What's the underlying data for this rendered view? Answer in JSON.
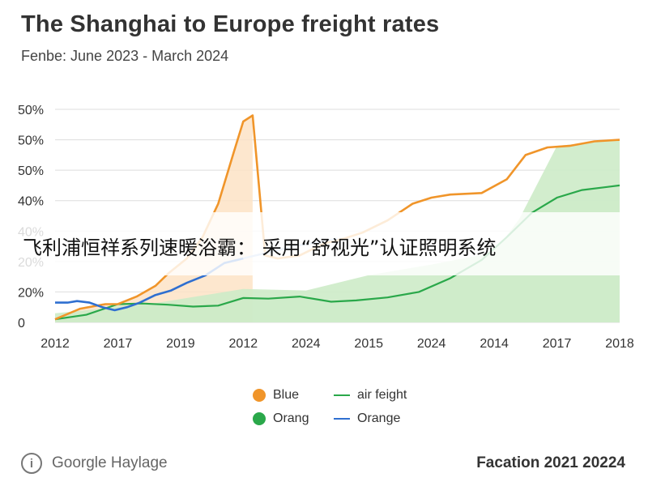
{
  "header": {
    "title": "The Shanghai to Europe freight rates",
    "subtitle": "Fenbe: June 2023 - March 2024"
  },
  "overlay": {
    "banner_text": "飞利浦恒祥系列速暖浴霸： 采用“舒视光”认证照明系统"
  },
  "footer": {
    "source_label": "Goorgle Haylage",
    "source_icon": "info-icon",
    "right_text": "Facation 2021 20224"
  },
  "colors": {
    "orange": "#f0952a",
    "orange_fill": "#fde3c6",
    "green": "#2aa84a",
    "green_fill": "#cdebc8",
    "blue": "#2f6fd0",
    "blue_light": "#a9c9ee",
    "grid": "#dddddd"
  },
  "chart_data": {
    "type": "line",
    "y_tick_labels": [
      "0",
      "20%",
      "20%",
      "40%",
      "40%",
      "50%",
      "50%",
      "50%"
    ],
    "x_tick_labels": [
      "2012",
      "2017",
      "2019",
      "2012",
      "2024",
      "2015",
      "2024",
      "2014",
      "2017",
      "2018"
    ],
    "grid": true,
    "legend_position": "bottom",
    "legend": [
      {
        "label": "Blue",
        "marker": "dot",
        "color": "#f0952a"
      },
      {
        "label": "air feight",
        "marker": "line",
        "color": "#2aa84a"
      },
      {
        "label": "Orang",
        "marker": "dot",
        "color": "#2aa84a"
      },
      {
        "label": "Orange",
        "marker": "line",
        "color": "#2f6fd0"
      }
    ],
    "x_domain": [
      0,
      9
    ],
    "y_domain": [
      0,
      7
    ],
    "series": [
      {
        "key": "orange",
        "color": "#f0952a",
        "x": [
          0,
          0.4,
          0.8,
          1.0,
          1.3,
          1.6,
          1.8,
          2.1,
          2.35,
          2.6,
          2.85,
          3.0,
          3.15,
          3.35,
          3.55,
          3.9,
          4.3,
          4.6,
          4.9,
          5.3,
          5.7,
          6.0,
          6.3,
          6.8,
          7.2,
          7.5,
          7.85,
          8.2,
          8.6,
          9.0
        ],
        "y": [
          0.1,
          0.45,
          0.6,
          0.6,
          0.85,
          1.2,
          1.6,
          2.1,
          2.8,
          3.9,
          5.6,
          6.6,
          6.8,
          2.2,
          2.1,
          2.2,
          2.6,
          2.75,
          2.95,
          3.35,
          3.9,
          4.1,
          4.2,
          4.25,
          4.7,
          5.5,
          5.75,
          5.8,
          5.95,
          6.0
        ]
      },
      {
        "key": "blue",
        "color": "#2f6fd0",
        "x": [
          0,
          0.2,
          0.35,
          0.55,
          0.75,
          0.95,
          1.15,
          1.35,
          1.6,
          1.85,
          2.1,
          2.4,
          2.7,
          2.9,
          3.0
        ],
        "y": [
          0.65,
          0.65,
          0.7,
          0.65,
          0.5,
          0.4,
          0.5,
          0.65,
          0.9,
          1.05,
          1.3,
          1.55,
          1.95,
          2.05,
          2.1
        ]
      },
      {
        "key": "green",
        "color": "#2aa84a",
        "x": [
          0,
          0.5,
          1.0,
          1.4,
          1.8,
          2.2,
          2.6,
          3.0,
          3.4,
          3.9,
          4.4,
          4.8,
          5.3,
          5.8,
          6.3,
          6.8,
          7.2,
          7.6,
          8.0,
          8.4,
          8.8,
          9.0
        ],
        "y": [
          0.1,
          0.25,
          0.6,
          0.62,
          0.58,
          0.52,
          0.55,
          0.8,
          0.78,
          0.85,
          0.68,
          0.72,
          0.82,
          1.0,
          1.45,
          2.05,
          2.8,
          3.6,
          4.1,
          4.35,
          4.45,
          4.5
        ]
      }
    ]
  }
}
